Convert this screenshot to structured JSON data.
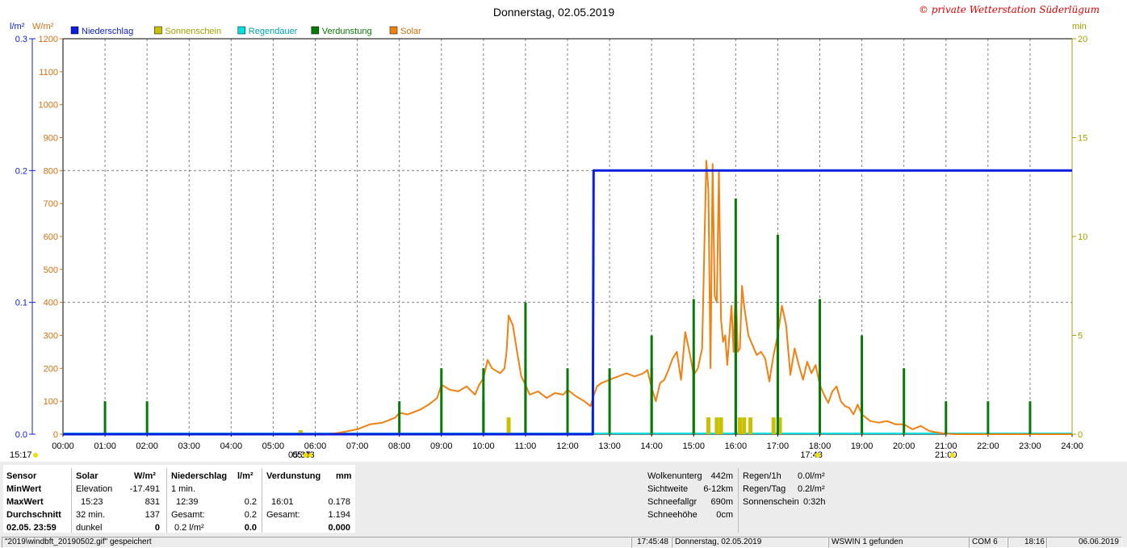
{
  "window_title": "Donnerstag, 02.05.2019",
  "copyright": "© private Wetterstation Süderlügum",
  "colors": {
    "niederschlag": "#0a1ee0",
    "sonnenschein": "#c8c000",
    "regendauer": "#00e0e0",
    "verdunstung": "#087a08",
    "solar": "#f08010",
    "grid": "#808080"
  },
  "axis_labels": {
    "left_unit_rain": "l/m²",
    "left_unit_solar": "W/m²",
    "right_unit": "min"
  },
  "chart_data": {
    "type": "line",
    "title": "Donnerstag, 02.05.2019",
    "xlim": [
      0,
      24
    ],
    "x_ticks": [
      "00:00",
      "01:00",
      "02:00",
      "03:00",
      "04:00",
      "05:00",
      "06:00",
      "07:00",
      "08:00",
      "09:00",
      "10:00",
      "11:00",
      "12:00",
      "13:00",
      "14:00",
      "15:00",
      "16:00",
      "17:00",
      "18:00",
      "19:00",
      "20:00",
      "21:00",
      "22:00",
      "23:00",
      "24:00"
    ],
    "y_rain": {
      "unit": "l/m²",
      "range": [
        0,
        0.3
      ],
      "ticks": [
        "0.0",
        "0.1",
        "0.2",
        "0.3"
      ]
    },
    "y_solar": {
      "unit": "W/m²",
      "range": [
        0,
        1200
      ],
      "ticks": [
        "0",
        "100",
        "200",
        "300",
        "400",
        "500",
        "600",
        "700",
        "800",
        "900",
        "1000",
        "1100",
        "1200"
      ]
    },
    "y_minutes": {
      "unit": "min",
      "range": [
        0,
        20
      ],
      "ticks": [
        "0",
        "5",
        "10",
        "15",
        "20"
      ]
    },
    "legend": [
      "Niederschlag",
      "Sonnenschein",
      "Regendauer",
      "Verdunstung",
      "Solar"
    ],
    "legend_position": "top-left",
    "grid": true,
    "series": [
      {
        "name": "Niederschlag",
        "axis": "rain",
        "kind": "step",
        "x": [
          0,
          12.6,
          12.62,
          24
        ],
        "values": [
          0,
          0,
          0.2,
          0.2
        ]
      },
      {
        "name": "Solar",
        "axis": "solar",
        "kind": "line",
        "x": [
          0,
          6.3,
          6.6,
          7.0,
          7.3,
          7.6,
          7.9,
          8.0,
          8.2,
          8.5,
          8.7,
          8.9,
          9.0,
          9.2,
          9.4,
          9.6,
          9.8,
          9.9,
          10.0,
          10.1,
          10.2,
          10.4,
          10.5,
          10.55,
          10.6,
          10.7,
          10.8,
          10.9,
          11.0,
          11.1,
          11.3,
          11.5,
          11.7,
          11.9,
          12.0,
          12.2,
          12.4,
          12.55,
          12.6,
          12.7,
          12.8,
          13.0,
          13.2,
          13.4,
          13.6,
          13.8,
          13.9,
          14.0,
          14.1,
          14.2,
          14.3,
          14.4,
          14.5,
          14.6,
          14.7,
          14.8,
          14.9,
          15.0,
          15.1,
          15.2,
          15.3,
          15.35,
          15.4,
          15.45,
          15.5,
          15.55,
          15.6,
          15.65,
          15.7,
          15.75,
          15.8,
          15.9,
          15.95,
          16.0,
          16.05,
          16.1,
          16.15,
          16.2,
          16.3,
          16.4,
          16.5,
          16.6,
          16.7,
          16.8,
          16.9,
          17.0,
          17.1,
          17.2,
          17.3,
          17.4,
          17.5,
          17.6,
          17.7,
          17.8,
          17.9,
          18.0,
          18.1,
          18.2,
          18.3,
          18.4,
          18.5,
          18.6,
          18.7,
          18.8,
          18.9,
          19.0,
          19.2,
          19.4,
          19.6,
          19.8,
          20.0,
          20.2,
          20.4,
          20.6,
          20.8,
          21.0,
          21.2,
          24
        ],
        "values": [
          0,
          0,
          5,
          15,
          30,
          35,
          50,
          65,
          60,
          75,
          90,
          110,
          150,
          135,
          130,
          145,
          120,
          150,
          170,
          225,
          200,
          185,
          200,
          250,
          360,
          330,
          250,
          175,
          150,
          120,
          130,
          110,
          125,
          120,
          135,
          115,
          100,
          85,
          110,
          145,
          155,
          165,
          175,
          185,
          175,
          185,
          195,
          140,
          100,
          155,
          165,
          195,
          230,
          250,
          165,
          310,
          250,
          180,
          200,
          260,
          830,
          740,
          200,
          820,
          420,
          400,
          800,
          350,
          280,
          300,
          210,
          390,
          250,
          460,
          250,
          260,
          450,
          390,
          300,
          270,
          240,
          250,
          230,
          160,
          240,
          300,
          390,
          330,
          180,
          260,
          210,
          165,
          220,
          185,
          210,
          150,
          120,
          95,
          130,
          145,
          100,
          85,
          80,
          60,
          90,
          60,
          40,
          35,
          40,
          30,
          30,
          15,
          25,
          10,
          5,
          2,
          0,
          0
        ]
      },
      {
        "name": "Verdunstung",
        "axis": "solar",
        "kind": "bars",
        "x": [
          1.0,
          2.0,
          9.0,
          10.0,
          11.0,
          12.0,
          13.0,
          14.0,
          15.0,
          16.0,
          17.0,
          18.0,
          19.0,
          20.0,
          21.0,
          22.0,
          23.0,
          8.0,
          14.0,
          15.0,
          16.0,
          17.0,
          18.0,
          10.0,
          11.0,
          12.0,
          19.0
        ],
        "values": [
          100,
          100,
          200,
          200,
          400,
          200,
          200,
          300,
          410,
          715,
          605,
          410,
          300,
          200,
          100,
          100,
          100,
          100,
          200,
          200,
          360,
          400,
          200,
          100,
          200,
          100,
          100
        ]
      },
      {
        "name": "Sonnenschein",
        "axis": "minutes",
        "kind": "bars",
        "x": [
          5.65,
          10.6,
          15.35,
          15.55,
          15.65,
          16.1,
          16.2,
          16.35,
          16.9,
          17.05
        ],
        "values": [
          0.2,
          0.85,
          0.85,
          0.85,
          0.85,
          0.85,
          0.85,
          0.85,
          0.85,
          0.85
        ]
      },
      {
        "name": "Regendauer",
        "axis": "minutes",
        "kind": "bars",
        "x": [
          12.6
        ],
        "values": [
          1.2
        ]
      }
    ],
    "sun_markers": [
      {
        "label": "15:17",
        "position": "left"
      },
      {
        "label": "05:43",
        "x": 5.72
      },
      {
        "label": "05:37",
        "x": 5.62
      },
      {
        "label": "17:48",
        "x": 17.8
      },
      {
        "label": "21:00",
        "x": 21.0
      }
    ]
  },
  "stats": {
    "sensor_col": {
      "header": "Sensor",
      "rows": [
        "MinWert",
        "MaxWert",
        "Durchschnitt",
        "02.05. 23:59"
      ]
    },
    "solar_col": {
      "header": "Solar",
      "unit": "W/m²",
      "rows": [
        {
          "label": "Elevation",
          "value": "-17.491"
        },
        {
          "label": "15:23",
          "value": "831"
        },
        {
          "label": "32 min.",
          "value": "137"
        },
        {
          "label": "dunkel",
          "value": "0"
        }
      ]
    },
    "rain_col": {
      "header": "Niederschlag",
      "unit": "l/m²",
      "rows": [
        {
          "label": "1 min.",
          "value": ""
        },
        {
          "label": "12:39",
          "value": "0.2"
        },
        {
          "label": "Gesamt:",
          "value": "0.2"
        },
        {
          "label": "0.2 l/m²",
          "value": "0.0"
        }
      ]
    },
    "evap_col": {
      "header": "Verdunstung",
      "unit": "mm",
      "rows": [
        {
          "label": "",
          "value": ""
        },
        {
          "label": "16:01",
          "value": "0.178"
        },
        {
          "label": "Gesamt:",
          "value": "1.194"
        },
        {
          "label": "",
          "value": "0.000"
        }
      ]
    },
    "weather_col": [
      {
        "label": "Wolkenunterg",
        "value": "442m"
      },
      {
        "label": "Sichtweite",
        "value": "6-12km"
      },
      {
        "label": "Schneefallgr",
        "value": "690m"
      },
      {
        "label": "Schneehöhe",
        "value": "0cm"
      }
    ],
    "rain_summary": [
      {
        "label": "Regen/1h",
        "value": "0.0l/m²"
      },
      {
        "label": "Regen/Tag",
        "value": "0.2l/m²"
      },
      {
        "label": "Sonnenschein",
        "value": "0:32h"
      }
    ]
  },
  "statusbar": {
    "file": "\"2019\\windbft_20190502.gif\" gespeichert",
    "time1": "17:45:48",
    "date_label": "Donnerstag, 02.05.2019",
    "found": "WSWIN 1 gefunden",
    "com": "COM 6",
    "time2": "18:16",
    "date2": "06.06.2019"
  }
}
